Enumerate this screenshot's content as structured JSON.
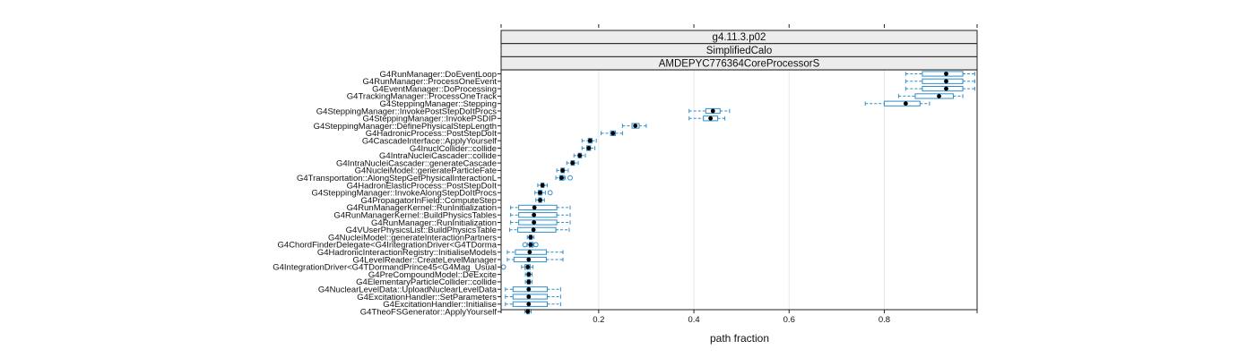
{
  "chart_data": {
    "type": "box",
    "strips": [
      "g4.11.3.p02",
      "SimplifiedCalo",
      "AMDEPYC776364CoreProcessorS"
    ],
    "xlabel": "path fraction",
    "xlim": [
      -0.005,
      0.995
    ],
    "xticks": [
      0.2,
      0.4,
      0.6,
      0.8
    ],
    "xtick_labels": [
      "0.2",
      "0.4",
      "0.6",
      "0.8"
    ],
    "grid": true,
    "colors": {
      "box": "#2f8ec9",
      "median": "#000000",
      "strip": "#ececec",
      "frame": "#222222",
      "grid": "#e6e6e6"
    },
    "categories": [
      "G4RunManager::DoEventLoop",
      "G4RunManager::ProcessOneEvent",
      "G4EventManager::DoProcessing",
      "G4TrackingManager::ProcessOneTrack",
      "G4SteppingManager::Stepping",
      "G4SteppingManager::InvokePostStepDoItProcs",
      "G4SteppingManager::InvokePSDIP",
      "G4SteppingManager::DefinePhysicalStepLength",
      "G4HadronicProcess::PostStepDoIt",
      "G4CascadeInterface::ApplyYourself",
      "G4InuclCollider::collide",
      "G4IntraNucleiCascader::collide",
      "G4IntraNucleiCascader::generateCascade",
      "G4NucleiModel::generateParticleFate",
      "G4Transportation::AlongStepGetPhysicalInteractionL",
      "G4HadronElasticProcess::PostStepDoIt",
      "G4SteppingManager::InvokeAlongStepDoItProcs",
      "G4PropagatorInField::ComputeStep",
      "G4RunManagerKernel::RunInitialization",
      "G4RunManagerKernel::BuildPhysicsTables",
      "G4RunManager::RunInitialization",
      "G4VUserPhysicsList::BuildPhysicsTable",
      "G4NucleiModel::generateInteractionPartners",
      "G4ChordFinderDelegate<G4IntegrationDriver<G4TDorma",
      "G4HadronicInteractionRegistry::InitialiseModels",
      "G4LevelReader::CreateLevelManager",
      "G4IntegrationDriver<G4TDormandPrince45<G4Mag_Usual",
      "G4PreCompoundModel::DeExcite",
      "G4ElementaryParticleCollider::collide",
      "G4NuclearLevelData::UploadNuclearLevelData",
      "G4ExcitationHandler::SetParameters",
      "G4ExcitationHandler::Initialise",
      "G4TheoFSGenerator::ApplyYourself"
    ],
    "boxes": [
      {
        "whisker_low": 0.845,
        "q1": 0.88,
        "median": 0.93,
        "q3": 0.965,
        "whisker_high": 0.99,
        "outliers": []
      },
      {
        "whisker_low": 0.845,
        "q1": 0.88,
        "median": 0.93,
        "q3": 0.965,
        "whisker_high": 0.99,
        "outliers": []
      },
      {
        "whisker_low": 0.845,
        "q1": 0.88,
        "median": 0.93,
        "q3": 0.965,
        "whisker_high": 0.99,
        "outliers": []
      },
      {
        "whisker_low": 0.83,
        "q1": 0.865,
        "median": 0.915,
        "q3": 0.945,
        "whisker_high": 0.965,
        "outliers": []
      },
      {
        "whisker_low": 0.76,
        "q1": 0.8,
        "median": 0.845,
        "q3": 0.875,
        "whisker_high": 0.895,
        "outliers": []
      },
      {
        "whisker_low": 0.39,
        "q1": 0.425,
        "median": 0.44,
        "q3": 0.455,
        "whisker_high": 0.475,
        "outliers": []
      },
      {
        "whisker_low": 0.39,
        "q1": 0.42,
        "median": 0.435,
        "q3": 0.45,
        "whisker_high": 0.465,
        "outliers": []
      },
      {
        "whisker_low": 0.25,
        "q1": 0.27,
        "median": 0.277,
        "q3": 0.285,
        "whisker_high": 0.3,
        "outliers": []
      },
      {
        "whisker_low": 0.205,
        "q1": 0.225,
        "median": 0.23,
        "q3": 0.235,
        "whisker_high": 0.25,
        "outliers": []
      },
      {
        "whisker_low": 0.165,
        "q1": 0.178,
        "median": 0.182,
        "q3": 0.186,
        "whisker_high": 0.195,
        "outliers": []
      },
      {
        "whisker_low": 0.165,
        "q1": 0.175,
        "median": 0.179,
        "q3": 0.183,
        "whisker_high": 0.192,
        "outliers": []
      },
      {
        "whisker_low": 0.148,
        "q1": 0.157,
        "median": 0.16,
        "q3": 0.164,
        "whisker_high": 0.172,
        "outliers": []
      },
      {
        "whisker_low": 0.133,
        "q1": 0.142,
        "median": 0.145,
        "q3": 0.149,
        "whisker_high": 0.157,
        "outliers": []
      },
      {
        "whisker_low": 0.112,
        "q1": 0.121,
        "median": 0.124,
        "q3": 0.128,
        "whisker_high": 0.136,
        "outliers": []
      },
      {
        "whisker_low": 0.11,
        "q1": 0.118,
        "median": 0.122,
        "q3": 0.127,
        "whisker_high": 0.13,
        "outliers": [
          0.14
        ]
      },
      {
        "whisker_low": 0.072,
        "q1": 0.079,
        "median": 0.082,
        "q3": 0.085,
        "whisker_high": 0.092,
        "outliers": []
      },
      {
        "whisker_low": 0.066,
        "q1": 0.073,
        "median": 0.077,
        "q3": 0.081,
        "whisker_high": 0.088,
        "outliers": [
          0.098
        ]
      },
      {
        "whisker_low": 0.068,
        "q1": 0.074,
        "median": 0.077,
        "q3": 0.08,
        "whisker_high": 0.086,
        "outliers": []
      },
      {
        "whisker_low": 0.015,
        "q1": 0.032,
        "median": 0.065,
        "q3": 0.112,
        "whisker_high": 0.14,
        "outliers": []
      },
      {
        "whisker_low": 0.015,
        "q1": 0.032,
        "median": 0.064,
        "q3": 0.112,
        "whisker_high": 0.14,
        "outliers": []
      },
      {
        "whisker_low": 0.015,
        "q1": 0.032,
        "median": 0.064,
        "q3": 0.112,
        "whisker_high": 0.14,
        "outliers": []
      },
      {
        "whisker_low": 0.013,
        "q1": 0.03,
        "median": 0.063,
        "q3": 0.11,
        "whisker_high": 0.138,
        "outliers": []
      },
      {
        "whisker_low": 0.05,
        "q1": 0.054,
        "median": 0.057,
        "q3": 0.06,
        "whisker_high": 0.064,
        "outliers": []
      },
      {
        "whisker_low": 0.05,
        "q1": 0.054,
        "median": 0.057,
        "q3": 0.062,
        "whisker_high": 0.064,
        "outliers": [
          0.045,
          0.068
        ]
      },
      {
        "whisker_low": 0.008,
        "q1": 0.025,
        "median": 0.055,
        "q3": 0.09,
        "whisker_high": 0.125,
        "outliers": []
      },
      {
        "whisker_low": 0.008,
        "q1": 0.022,
        "median": 0.053,
        "q3": 0.09,
        "whisker_high": 0.125,
        "outliers": []
      },
      {
        "whisker_low": 0.038,
        "q1": 0.045,
        "median": 0.051,
        "q3": 0.056,
        "whisker_high": 0.062,
        "outliers": [
          0.0
        ]
      },
      {
        "whisker_low": 0.046,
        "q1": 0.05,
        "median": 0.053,
        "q3": 0.056,
        "whisker_high": 0.06,
        "outliers": []
      },
      {
        "whisker_low": 0.046,
        "q1": 0.05,
        "median": 0.053,
        "q3": 0.056,
        "whisker_high": 0.06,
        "outliers": []
      },
      {
        "whisker_low": 0.004,
        "q1": 0.02,
        "median": 0.053,
        "q3": 0.092,
        "whisker_high": 0.12,
        "outliers": []
      },
      {
        "whisker_low": 0.004,
        "q1": 0.02,
        "median": 0.053,
        "q3": 0.092,
        "whisker_high": 0.12,
        "outliers": []
      },
      {
        "whisker_low": 0.004,
        "q1": 0.02,
        "median": 0.053,
        "q3": 0.092,
        "whisker_high": 0.12,
        "outliers": []
      },
      {
        "whisker_low": 0.045,
        "q1": 0.049,
        "median": 0.051,
        "q3": 0.054,
        "whisker_high": 0.058,
        "outliers": []
      }
    ]
  }
}
